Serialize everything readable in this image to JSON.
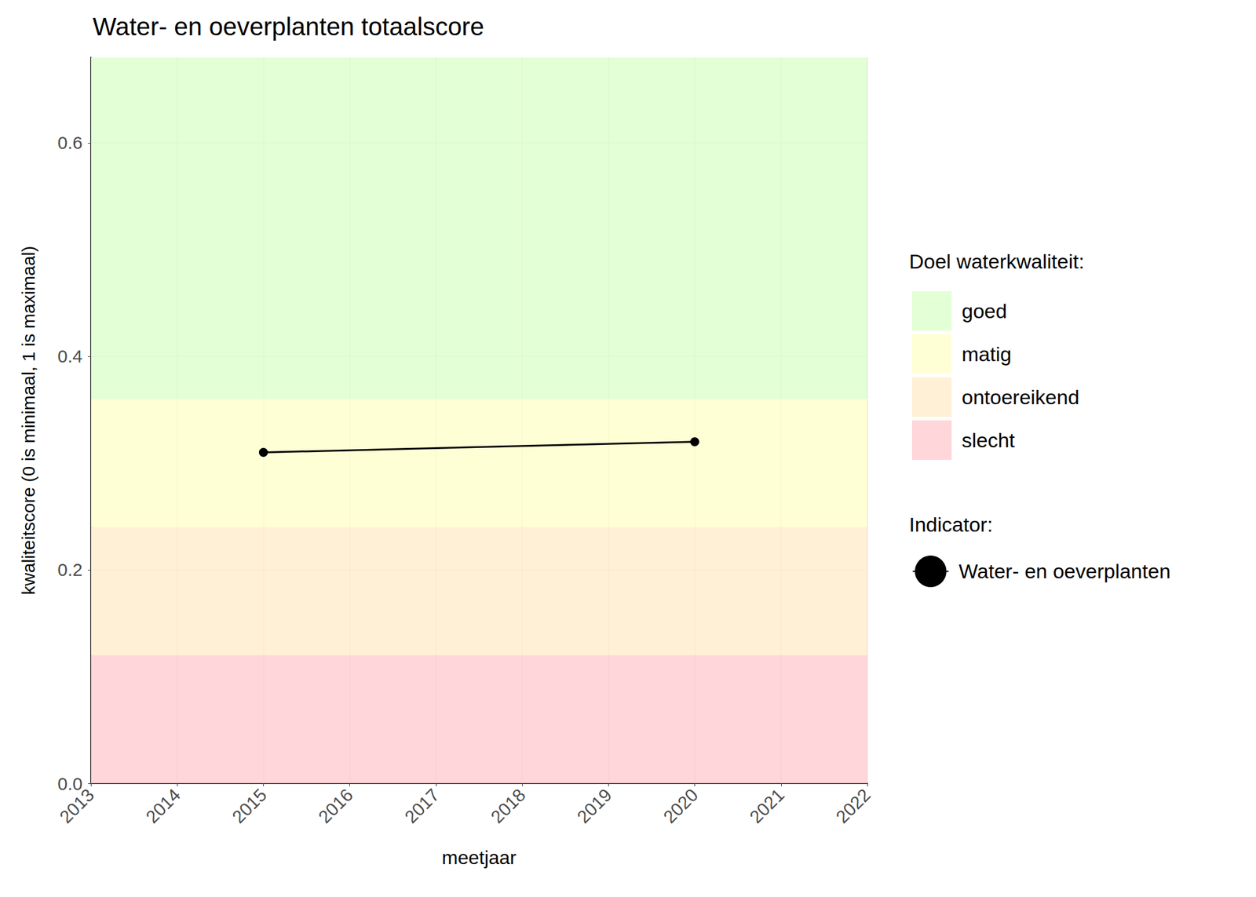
{
  "chart_data": {
    "type": "line",
    "title": "Water- en oeverplanten totaalscore",
    "x_label": "meetjaar",
    "y_label": "kwaliteitscore (0 is minimaal, 1 is maximaal)",
    "xlim": [
      2013,
      2022
    ],
    "xticks": [
      2013,
      2014,
      2015,
      2016,
      2017,
      2018,
      2019,
      2020,
      2021,
      2022
    ],
    "ylim": [
      0,
      0.68
    ],
    "yticks": [
      {
        "value": 0,
        "label": "0.0"
      },
      0.2,
      0.4,
      0.6
    ],
    "grid": true,
    "band_legend_title": "Doel waterkwaliteit:",
    "series_legend_title": "Indicator:",
    "bands": [
      {
        "name": "goed",
        "color": "#dcffcc",
        "from": 0.36,
        "to": 0.68
      },
      {
        "name": "matig",
        "color": "#ffffcc",
        "from": 0.24,
        "to": 0.36
      },
      {
        "name": "ontoereikend",
        "color": "#ffeccc",
        "from": 0.12,
        "to": 0.24
      },
      {
        "name": "slecht",
        "color": "#ffccd0",
        "from": 0,
        "to": 0.12
      }
    ],
    "series": [
      {
        "name": "Water- en oeverplanten",
        "color": "#000000",
        "marker": "circle",
        "x": [
          2015,
          2020
        ],
        "values": [
          0.31,
          0.32
        ]
      }
    ]
  }
}
